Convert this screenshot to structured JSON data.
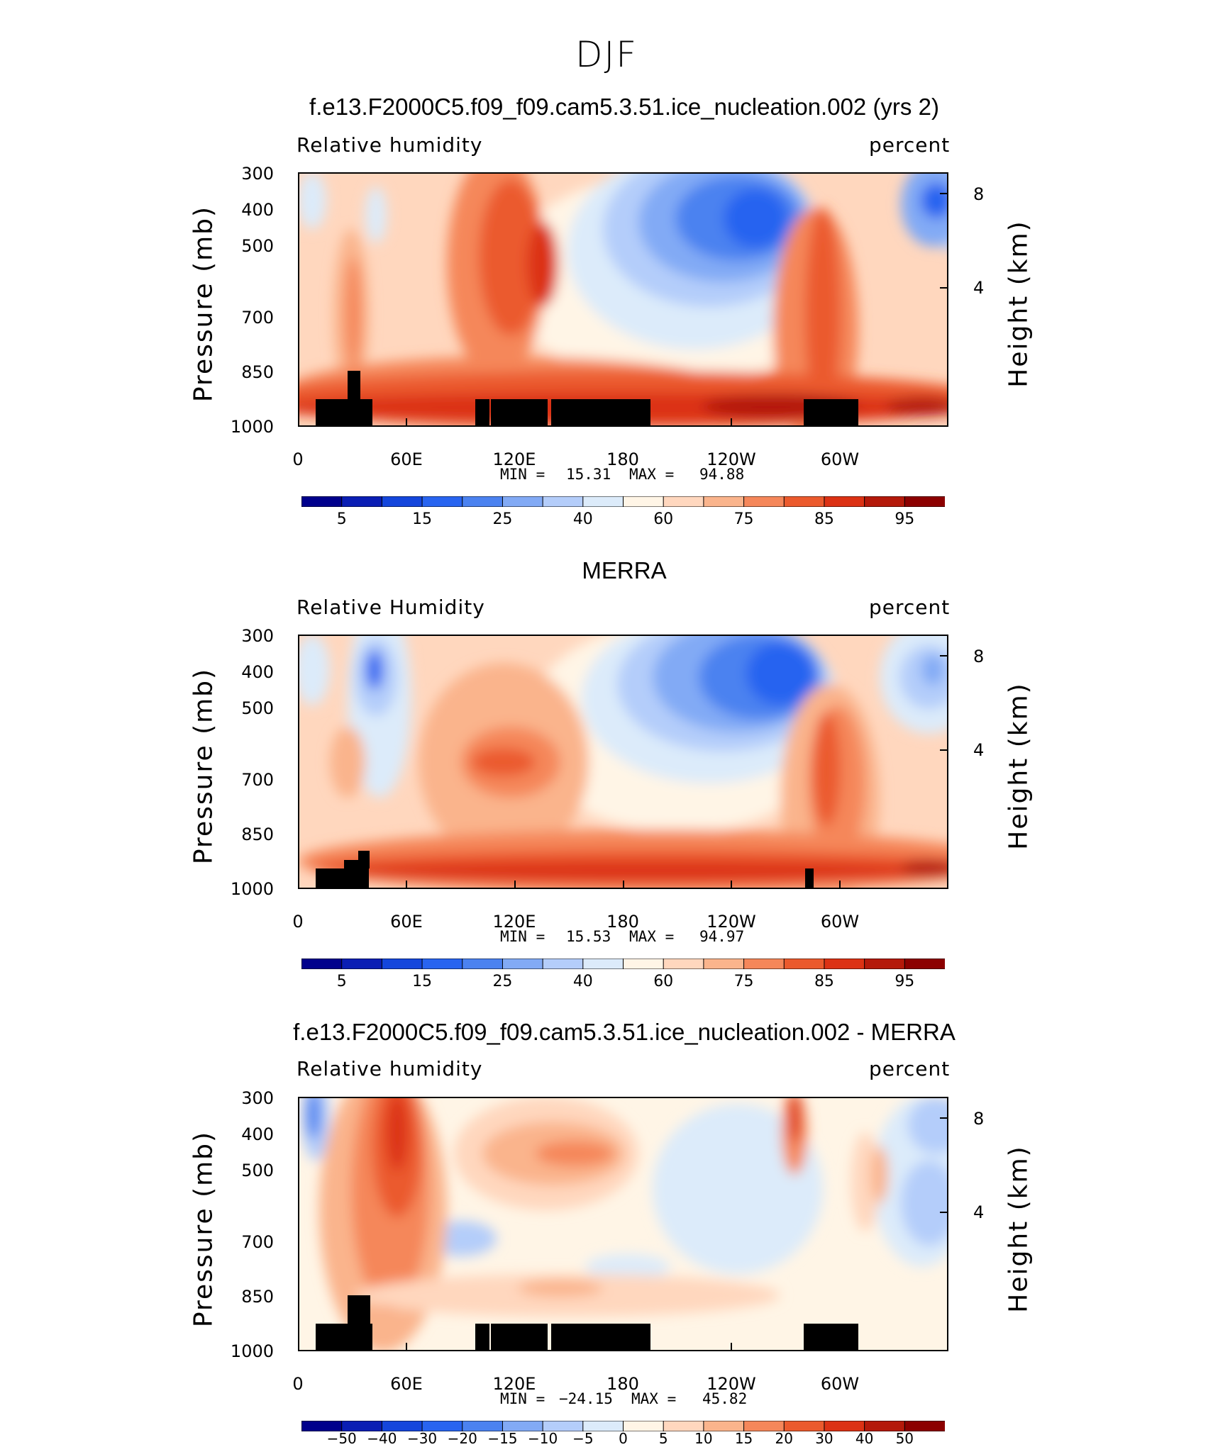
{
  "page_title": "DJF",
  "panels": [
    {
      "title": "f.e13.F2000C5.f09_f09.cam5.3.51.ice_nucleation.002 (yrs 2)",
      "left_label": "Relative humidity",
      "right_label": "percent",
      "min_label": "MIN =",
      "min_value": "15.31",
      "max_label": "MAX =",
      "max_value": "94.88"
    },
    {
      "title": "MERRA",
      "left_label": "Relative Humidity",
      "right_label": "percent",
      "min_label": "MIN =",
      "min_value": "15.53",
      "max_label": "MAX =",
      "max_value": "94.97"
    },
    {
      "title": "f.e13.F2000C5.f09_f09.cam5.3.51.ice_nucleation.002 - MERRA",
      "left_label": "Relative humidity",
      "right_label": "percent",
      "min_label": "MIN =",
      "min_value": "−24.15",
      "max_label": "MAX =",
      "max_value": "45.82"
    }
  ],
  "axes": {
    "ylabel": "Pressure (mb)",
    "y2label": "Height (km)",
    "y_ticks": [
      "300",
      "400",
      "500",
      "700",
      "850",
      "1000"
    ],
    "y2_ticks": [
      "8",
      "4"
    ],
    "x_ticks": [
      "0",
      "60E",
      "120E",
      "180",
      "120W",
      "60W"
    ]
  },
  "colorbars": {
    "rh": {
      "colors": [
        "#00008c",
        "#0a1eb4",
        "#1446dc",
        "#2864f0",
        "#4b82f0",
        "#82aaf5",
        "#b4cdfa",
        "#dcebfa",
        "#fff5e6",
        "#ffd7be",
        "#fab48c",
        "#f5875a",
        "#eb5a2d",
        "#dc3214",
        "#b4190a",
        "#8c0000"
      ],
      "labels": [
        "5",
        "15",
        "25",
        "40",
        "60",
        "75",
        "85",
        "95"
      ]
    },
    "diff": {
      "colors": [
        "#00008c",
        "#0a1eb4",
        "#1446dc",
        "#2864f0",
        "#4b82f0",
        "#82aaf5",
        "#b4cdfa",
        "#dcebfa",
        "#fff5e6",
        "#ffd7be",
        "#fab48c",
        "#f5875a",
        "#eb5a2d",
        "#dc3214",
        "#b4190a",
        "#8c0000"
      ],
      "labels": [
        "−50",
        "−40",
        "−30",
        "−20",
        "−15",
        "−10",
        "−5",
        "0",
        "5",
        "10",
        "15",
        "20",
        "30",
        "40",
        "50"
      ]
    }
  },
  "chart_data": [
    {
      "type": "heatmap",
      "title": "f.e13.F2000C5.f09_f09.cam5.3.51.ice_nucleation.002 (yrs 2)",
      "variable": "Relative humidity",
      "units": "percent",
      "xlabel": "",
      "ylabel": "Pressure (mb)",
      "y2label": "Height (km)",
      "x_range": [
        0,
        360
      ],
      "y_range": [
        1000,
        300
      ],
      "min": 15.31,
      "max": 94.88
    },
    {
      "type": "heatmap",
      "title": "MERRA",
      "variable": "Relative Humidity",
      "units": "percent",
      "xlabel": "",
      "ylabel": "Pressure (mb)",
      "y2label": "Height (km)",
      "x_range": [
        0,
        360
      ],
      "y_range": [
        1000,
        300
      ],
      "min": 15.53,
      "max": 94.97
    },
    {
      "type": "heatmap",
      "title": "f.e13.F2000C5.f09_f09.cam5.3.51.ice_nucleation.002 - MERRA",
      "variable": "Relative humidity",
      "units": "percent",
      "xlabel": "",
      "ylabel": "Pressure (mb)",
      "y2label": "Height (km)",
      "x_range": [
        0,
        360
      ],
      "y_range": [
        1000,
        300
      ],
      "min": -24.15,
      "max": 45.82
    }
  ]
}
